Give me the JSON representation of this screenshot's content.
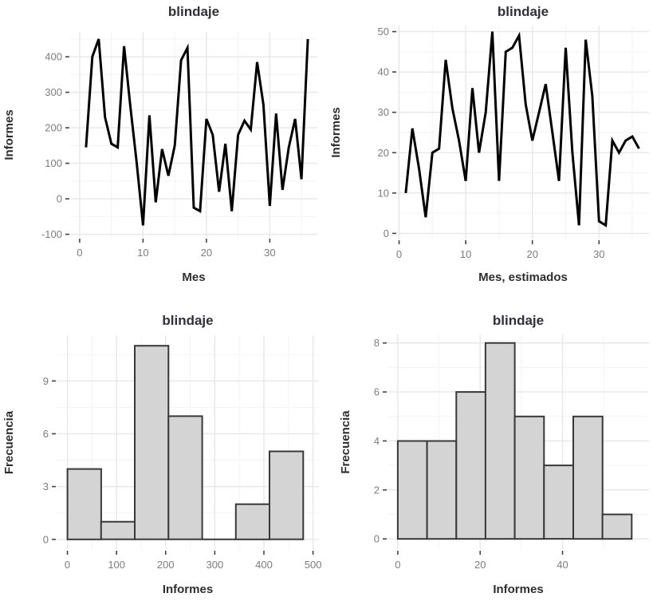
{
  "page": {
    "background": "#ffffff"
  },
  "colors": {
    "plot_title": "#30303a",
    "axis_title": "#2e2e2e",
    "tick_label": "#7d7d7d",
    "tick_mark": "#444444",
    "grid_major": "#e7e7e7",
    "grid_minor": "#f3f3f3",
    "line": "#000000",
    "bar_fill": "#d4d4d4",
    "bar_stroke": "#383838"
  },
  "chart_data": [
    {
      "id": "line-mes",
      "type": "line",
      "title": "blindaje",
      "xlabel": "Mes",
      "ylabel": "Informes",
      "x": [
        1,
        2,
        3,
        4,
        5,
        6,
        7,
        8,
        9,
        10,
        11,
        12,
        13,
        14,
        15,
        16,
        17,
        18,
        19,
        20,
        21,
        22,
        23,
        24,
        25,
        26,
        27,
        28,
        29,
        30,
        31,
        32,
        33,
        34,
        35,
        36
      ],
      "values": [
        145,
        400,
        450,
        230,
        155,
        145,
        430,
        260,
        100,
        -75,
        235,
        -10,
        140,
        65,
        150,
        390,
        425,
        -25,
        -35,
        225,
        180,
        20,
        155,
        -35,
        180,
        220,
        195,
        385,
        265,
        -20,
        240,
        25,
        145,
        225,
        55,
        450
      ],
      "xlim": [
        -1.5,
        37.5
      ],
      "ylim": [
        -110,
        470
      ],
      "x_ticks": [
        0,
        10,
        20,
        30
      ],
      "y_ticks": [
        -100,
        0,
        100,
        200,
        300,
        400
      ],
      "grid": true,
      "legend": "none"
    },
    {
      "id": "line-mes-estimados",
      "type": "line",
      "title": "blindaje",
      "xlabel": "Mes, estimados",
      "ylabel": "Informes",
      "x": [
        1,
        2,
        3,
        4,
        5,
        6,
        7,
        8,
        9,
        10,
        11,
        12,
        13,
        14,
        15,
        16,
        17,
        18,
        19,
        20,
        21,
        22,
        23,
        24,
        25,
        26,
        27,
        28,
        29,
        30,
        31,
        32,
        33,
        34,
        35,
        36
      ],
      "values": [
        10,
        26,
        16,
        4,
        20,
        21,
        43,
        31,
        23,
        13,
        36,
        20,
        30,
        50,
        13,
        45,
        46,
        49,
        32,
        23,
        30,
        37,
        25,
        13,
        46,
        20,
        2,
        48,
        34,
        3,
        2,
        23,
        20,
        23,
        24,
        21
      ],
      "xlim": [
        -0.3,
        37.5
      ],
      "ylim": [
        -1.5,
        51.5
      ],
      "x_ticks": [
        0,
        10,
        20,
        30
      ],
      "y_ticks": [
        0,
        10,
        20,
        30,
        40,
        50
      ],
      "grid": true,
      "legend": "none"
    },
    {
      "id": "hist-informes",
      "type": "histogram",
      "title": "blindaje",
      "xlabel": "Informes",
      "ylabel": "Frecuencia",
      "bin_edges": [
        0,
        68.6,
        137.1,
        205.7,
        274.3,
        342.9,
        411.4,
        480
      ],
      "counts": [
        4,
        1,
        11,
        7,
        0,
        2,
        5
      ],
      "xlim": [
        -22,
        512
      ],
      "ylim": [
        -0.6,
        11.6
      ],
      "x_ticks": [
        0,
        100,
        200,
        300,
        400,
        500
      ],
      "y_ticks": [
        0,
        3,
        6,
        9
      ],
      "grid": true,
      "legend": "none"
    },
    {
      "id": "hist-informes-estimados",
      "type": "histogram",
      "title": "blindaje",
      "xlabel": "Informes",
      "ylabel": "Frecuencia",
      "bin_edges": [
        0,
        7.1,
        14.2,
        21.3,
        28.4,
        35.5,
        42.6,
        49.7,
        56.8
      ],
      "counts": [
        4,
        4,
        6,
        8,
        5,
        3,
        5,
        1
      ],
      "xlim": [
        -2.5,
        61
      ],
      "ylim": [
        -0.45,
        8.35
      ],
      "x_ticks": [
        0,
        20,
        40
      ],
      "y_ticks": [
        0,
        2,
        4,
        6,
        8
      ],
      "grid": true,
      "legend": "none"
    }
  ]
}
